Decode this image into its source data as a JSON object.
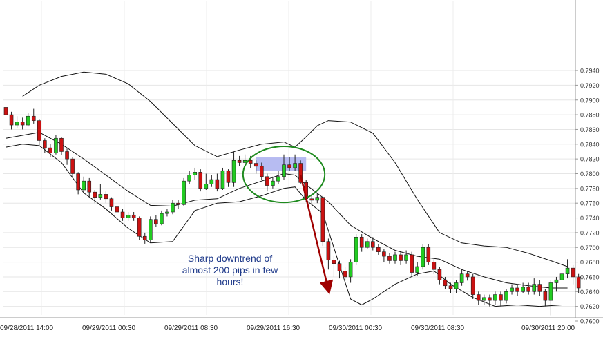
{
  "chart_data": {
    "type": "candlestick",
    "y_ticks": [
      "0.7600",
      "0.7620",
      "0.7640",
      "0.7660",
      "0.7680",
      "0.7700",
      "0.7720",
      "0.7740",
      "0.7760",
      "0.7780",
      "0.7800",
      "0.7820",
      "0.7840",
      "0.7860",
      "0.7880",
      "0.7900",
      "0.7920",
      "0.7940"
    ],
    "y_min": 0.76,
    "y_max": 0.7946,
    "x_ticks": [
      "09/28/2011 14:00",
      "09/29/2011 00:30",
      "09/29/2011 08:30",
      "09/29/2011 16:30",
      "09/30/2011 00:30",
      "09/30/2011 08:30",
      "09/30/2011 20:00"
    ],
    "grid": true,
    "colors": {
      "up": "#22cc22",
      "down": "#cc1111",
      "band": "#111111",
      "highlight": "#aab0f0",
      "circle": "#1e8a1e",
      "arrow": "#a00000",
      "note": "#1f3a8a"
    },
    "candles": [
      [
        0.789,
        0.788,
        0.7901,
        0.7872
      ],
      [
        0.788,
        0.7866,
        0.7884,
        0.786
      ],
      [
        0.7866,
        0.787,
        0.7878,
        0.7862
      ],
      [
        0.787,
        0.7866,
        0.7876,
        0.786
      ],
      [
        0.7866,
        0.7878,
        0.7882,
        0.7864
      ],
      [
        0.7878,
        0.7872,
        0.7888,
        0.7868
      ],
      [
        0.7872,
        0.7845,
        0.7874,
        0.7838
      ],
      [
        0.7845,
        0.7835,
        0.7848,
        0.7828
      ],
      [
        0.7835,
        0.7828,
        0.784,
        0.7822
      ],
      [
        0.7828,
        0.7848,
        0.7852,
        0.7826
      ],
      [
        0.7848,
        0.783,
        0.785,
        0.7825
      ],
      [
        0.783,
        0.782,
        0.7834,
        0.7812
      ],
      [
        0.782,
        0.78,
        0.7822,
        0.7795
      ],
      [
        0.78,
        0.7778,
        0.7802,
        0.7772
      ],
      [
        0.7778,
        0.779,
        0.7796,
        0.7775
      ],
      [
        0.779,
        0.7775,
        0.7794,
        0.7768
      ],
      [
        0.7775,
        0.7768,
        0.7778,
        0.776
      ],
      [
        0.7768,
        0.7772,
        0.7786,
        0.7765
      ],
      [
        0.7772,
        0.7766,
        0.7776,
        0.776
      ],
      [
        0.7766,
        0.7755,
        0.7768,
        0.775
      ],
      [
        0.7755,
        0.7748,
        0.7758,
        0.7742
      ],
      [
        0.7748,
        0.774,
        0.7752,
        0.7736
      ],
      [
        0.774,
        0.7744,
        0.7748,
        0.7736
      ],
      [
        0.7744,
        0.774,
        0.7748,
        0.7736
      ],
      [
        0.774,
        0.7715,
        0.7742,
        0.771
      ],
      [
        0.7715,
        0.771,
        0.772,
        0.7705
      ],
      [
        0.771,
        0.7738,
        0.7742,
        0.7706
      ],
      [
        0.7738,
        0.7732,
        0.7744,
        0.7728
      ],
      [
        0.7732,
        0.7746,
        0.775,
        0.773
      ],
      [
        0.7746,
        0.7748,
        0.7752,
        0.7742
      ],
      [
        0.7748,
        0.776,
        0.7764,
        0.7745
      ],
      [
        0.776,
        0.7758,
        0.7764,
        0.7752
      ],
      [
        0.7758,
        0.779,
        0.7794,
        0.7756
      ],
      [
        0.779,
        0.7798,
        0.7804,
        0.7786
      ],
      [
        0.7798,
        0.7802,
        0.7808,
        0.7792
      ],
      [
        0.7802,
        0.778,
        0.7806,
        0.7776
      ],
      [
        0.778,
        0.7786,
        0.78,
        0.7778
      ],
      [
        0.7786,
        0.7792,
        0.7798,
        0.7782
      ],
      [
        0.7792,
        0.778,
        0.78,
        0.7776
      ],
      [
        0.778,
        0.7804,
        0.7808,
        0.7778
      ],
      [
        0.7804,
        0.7788,
        0.7806,
        0.7782
      ],
      [
        0.7788,
        0.7818,
        0.783,
        0.7782
      ],
      [
        0.7818,
        0.7815,
        0.7824,
        0.781
      ],
      [
        0.7815,
        0.7818,
        0.7826,
        0.781
      ],
      [
        0.7818,
        0.7814,
        0.7824,
        0.7808
      ],
      [
        0.7814,
        0.781,
        0.7818,
        0.78
      ],
      [
        0.781,
        0.7796,
        0.7815,
        0.7792
      ],
      [
        0.7796,
        0.7784,
        0.78,
        0.7776
      ],
      [
        0.7784,
        0.779,
        0.7796,
        0.778
      ],
      [
        0.779,
        0.7796,
        0.7804,
        0.7786
      ],
      [
        0.7796,
        0.7812,
        0.7826,
        0.7792
      ],
      [
        0.7812,
        0.7808,
        0.7822,
        0.7804
      ],
      [
        0.7808,
        0.7814,
        0.7826,
        0.7804
      ],
      [
        0.7814,
        0.7788,
        0.7818,
        0.7786
      ],
      [
        0.7788,
        0.7766,
        0.7792,
        0.7762
      ],
      [
        0.7766,
        0.7764,
        0.777,
        0.7758
      ],
      [
        0.7764,
        0.7768,
        0.7774,
        0.776
      ],
      [
        0.7768,
        0.7708,
        0.777,
        0.7702
      ],
      [
        0.7708,
        0.7683,
        0.7712,
        0.767
      ],
      [
        0.7683,
        0.7678,
        0.7688,
        0.766
      ],
      [
        0.7678,
        0.7668,
        0.7682,
        0.7658
      ],
      [
        0.7668,
        0.766,
        0.7674,
        0.7655
      ],
      [
        0.766,
        0.768,
        0.7684,
        0.7652
      ],
      [
        0.768,
        0.7714,
        0.7718,
        0.7676
      ],
      [
        0.7714,
        0.77,
        0.7718,
        0.7694
      ],
      [
        0.77,
        0.7708,
        0.7712,
        0.7698
      ],
      [
        0.7708,
        0.77,
        0.7714,
        0.7696
      ],
      [
        0.77,
        0.7694,
        0.7704,
        0.769
      ],
      [
        0.7694,
        0.7688,
        0.7698,
        0.768
      ],
      [
        0.7688,
        0.7682,
        0.7692,
        0.7678
      ],
      [
        0.7682,
        0.769,
        0.7694,
        0.7678
      ],
      [
        0.769,
        0.7682,
        0.7694,
        0.7676
      ],
      [
        0.7682,
        0.769,
        0.7696,
        0.7678
      ],
      [
        0.769,
        0.7666,
        0.7694,
        0.7662
      ],
      [
        0.7666,
        0.7674,
        0.768,
        0.7662
      ],
      [
        0.7674,
        0.77,
        0.7704,
        0.767
      ],
      [
        0.77,
        0.768,
        0.7704,
        0.7676
      ],
      [
        0.768,
        0.767,
        0.7684,
        0.7664
      ],
      [
        0.767,
        0.7656,
        0.7674,
        0.765
      ],
      [
        0.7656,
        0.7648,
        0.766,
        0.7644
      ],
      [
        0.7648,
        0.7644,
        0.7652,
        0.7638
      ],
      [
        0.7644,
        0.7652,
        0.7656,
        0.7638
      ],
      [
        0.7652,
        0.7664,
        0.767,
        0.7648
      ],
      [
        0.7664,
        0.766,
        0.7668,
        0.7655
      ],
      [
        0.766,
        0.7636,
        0.7664,
        0.763
      ],
      [
        0.7636,
        0.7628,
        0.764,
        0.7622
      ],
      [
        0.7628,
        0.7632,
        0.7636,
        0.7622
      ],
      [
        0.7632,
        0.7628,
        0.7636,
        0.762
      ],
      [
        0.7628,
        0.7636,
        0.764,
        0.7622
      ],
      [
        0.7636,
        0.7628,
        0.764,
        0.762
      ],
      [
        0.7628,
        0.764,
        0.7644,
        0.7624
      ],
      [
        0.764,
        0.7645,
        0.765,
        0.7636
      ],
      [
        0.7645,
        0.764,
        0.765,
        0.7634
      ],
      [
        0.764,
        0.7646,
        0.7652,
        0.7638
      ],
      [
        0.7646,
        0.764,
        0.7652,
        0.7636
      ],
      [
        0.764,
        0.765,
        0.7658,
        0.7636
      ],
      [
        0.765,
        0.764,
        0.7656,
        0.7634
      ],
      [
        0.764,
        0.7628,
        0.7644,
        0.762
      ],
      [
        0.7628,
        0.7652,
        0.7656,
        0.7608
      ],
      [
        0.7652,
        0.7656,
        0.766,
        0.764
      ],
      [
        0.7656,
        0.7664,
        0.7674,
        0.765
      ],
      [
        0.7664,
        0.7672,
        0.7684,
        0.7658
      ],
      [
        0.7672,
        0.766,
        0.7676,
        0.765
      ],
      [
        0.766,
        0.7645,
        0.7664,
        0.7638
      ]
    ],
    "upper_band": [
      [
        3,
        0.7905
      ],
      [
        6,
        0.792
      ],
      [
        10,
        0.7932
      ],
      [
        14,
        0.7938
      ],
      [
        18,
        0.7935
      ],
      [
        22,
        0.7922
      ],
      [
        26,
        0.7898
      ],
      [
        30,
        0.7868
      ],
      [
        34,
        0.7838
      ],
      [
        38,
        0.7823
      ],
      [
        42,
        0.7832
      ],
      [
        46,
        0.784
      ],
      [
        50,
        0.7843
      ],
      [
        52,
        0.7836
      ],
      [
        54,
        0.785
      ],
      [
        56,
        0.7865
      ],
      [
        58,
        0.7872
      ],
      [
        62,
        0.787
      ],
      [
        66,
        0.7855
      ],
      [
        70,
        0.7815
      ],
      [
        74,
        0.7765
      ],
      [
        78,
        0.772
      ],
      [
        82,
        0.7706
      ],
      [
        86,
        0.7702
      ],
      [
        90,
        0.77
      ],
      [
        94,
        0.7692
      ],
      [
        98,
        0.7682
      ],
      [
        101,
        0.7674
      ]
    ],
    "middle_band": [
      [
        0,
        0.7848
      ],
      [
        3,
        0.7852
      ],
      [
        6,
        0.7856
      ],
      [
        10,
        0.784
      ],
      [
        14,
        0.782
      ],
      [
        18,
        0.7798
      ],
      [
        22,
        0.7776
      ],
      [
        26,
        0.7757
      ],
      [
        30,
        0.7756
      ],
      [
        34,
        0.7764
      ],
      [
        38,
        0.7766
      ],
      [
        42,
        0.778
      ],
      [
        46,
        0.779
      ],
      [
        50,
        0.78
      ],
      [
        52,
        0.7798
      ],
      [
        54,
        0.7785
      ],
      [
        58,
        0.7762
      ],
      [
        62,
        0.773
      ],
      [
        66,
        0.7712
      ],
      [
        70,
        0.7696
      ],
      [
        74,
        0.7688
      ],
      [
        78,
        0.7684
      ],
      [
        82,
        0.767
      ],
      [
        86,
        0.766
      ],
      [
        90,
        0.7652
      ],
      [
        94,
        0.7648
      ],
      [
        98,
        0.7645
      ],
      [
        101,
        0.7645
      ]
    ],
    "lower_band": [
      [
        0,
        0.7836
      ],
      [
        3,
        0.784
      ],
      [
        6,
        0.7838
      ],
      [
        10,
        0.7815
      ],
      [
        14,
        0.7774
      ],
      [
        18,
        0.7752
      ],
      [
        22,
        0.7726
      ],
      [
        26,
        0.7706
      ],
      [
        30,
        0.7708
      ],
      [
        34,
        0.775
      ],
      [
        38,
        0.776
      ],
      [
        42,
        0.7762
      ],
      [
        46,
        0.777
      ],
      [
        50,
        0.778
      ],
      [
        52,
        0.7782
      ],
      [
        54,
        0.7764
      ],
      [
        57,
        0.7746
      ],
      [
        60,
        0.7676
      ],
      [
        62,
        0.763
      ],
      [
        64,
        0.7622
      ],
      [
        66,
        0.763
      ],
      [
        70,
        0.765
      ],
      [
        74,
        0.7664
      ],
      [
        77,
        0.7668
      ],
      [
        80,
        0.765
      ],
      [
        84,
        0.7632
      ],
      [
        88,
        0.762
      ],
      [
        92,
        0.7622
      ],
      [
        96,
        0.762
      ],
      [
        100,
        0.7622
      ]
    ],
    "highlight": {
      "i0": 45,
      "i1": 54,
      "v0": 0.7804,
      "v1": 0.7822
    },
    "circle": {
      "i": 50,
      "v": 0.7799,
      "ri": 7,
      "rv": 0.0038
    },
    "arrow": {
      "i0": 53,
      "v0": 0.7798,
      "i1": 58,
      "v1": 0.7643
    },
    "annotation": [
      "Sharp downtrend of",
      "almost 200 pips in few",
      "hours!"
    ]
  }
}
